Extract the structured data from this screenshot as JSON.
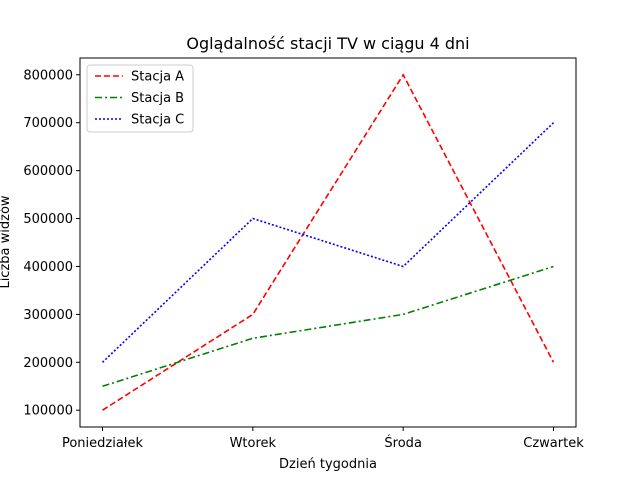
{
  "chart_data": {
    "type": "line",
    "title": "Oglądalność stacji TV w ciągu 4 dni",
    "xlabel": "Dzień tygodnia",
    "ylabel": "Liczba widzów",
    "categories": [
      "Poniedziałek",
      "Wtorek",
      "Środa",
      "Czwartek"
    ],
    "yticks": [
      100000,
      200000,
      300000,
      400000,
      500000,
      600000,
      700000,
      800000
    ],
    "ytick_labels": [
      "100000",
      "200000",
      "300000",
      "400000",
      "500000",
      "600000",
      "700000",
      "800000"
    ],
    "ylim": [
      65000,
      835000
    ],
    "grid": false,
    "legend_position": "top-left",
    "series": [
      {
        "name": "Stacja A",
        "values": [
          100000,
          300000,
          800000,
          200000
        ],
        "color": "#ff0000",
        "line_style": "dashed"
      },
      {
        "name": "Stacja B",
        "values": [
          150000,
          250000,
          300000,
          400000
        ],
        "color": "#008000",
        "line_style": "dashdot"
      },
      {
        "name": "Stacja C",
        "values": [
          200000,
          500000,
          400000,
          700000
        ],
        "color": "#0000ff",
        "line_style": "dotted"
      }
    ]
  }
}
